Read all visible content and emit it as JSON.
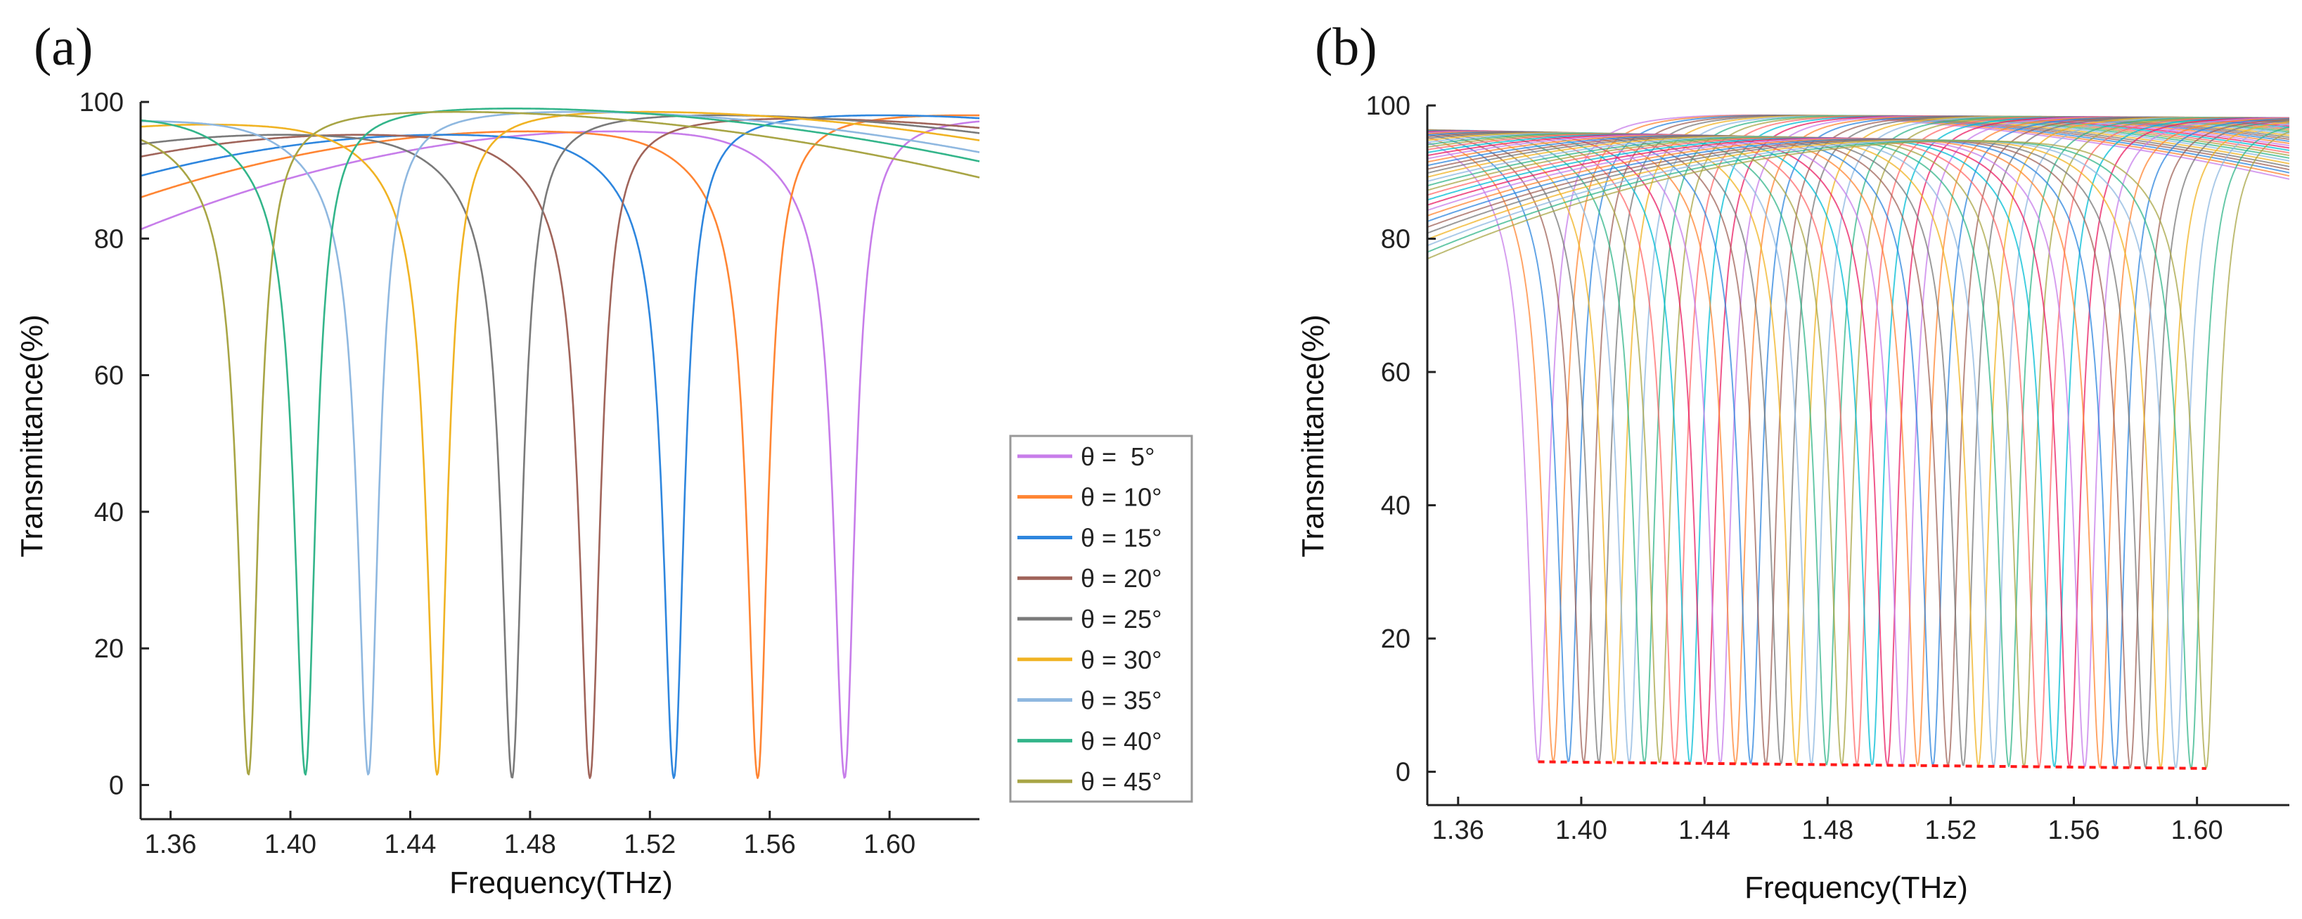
{
  "figure": {
    "panels": [
      {
        "label": "(a)",
        "chart_data": {
          "type": "line",
          "xlabel": "Frequency(THz)",
          "ylabel": "Transmittance(%)",
          "xlim": [
            1.35,
            1.63
          ],
          "ylim": [
            -5,
            100
          ],
          "xticks": [
            "1.36",
            "1.40",
            "1.44",
            "1.48",
            "1.52",
            "1.56",
            "1.60"
          ],
          "yticks": [
            "0",
            "20",
            "40",
            "60",
            "80",
            "100"
          ],
          "legend_position": "right",
          "series": [
            {
              "name": "θ =  5°",
              "color": "#c77dea",
              "dip_freq": 1.585,
              "dip_min": 1.0,
              "low_peak": 96,
              "high_peak": 98
            },
            {
              "name": "θ = 10°",
              "color": "#ff8533",
              "dip_freq": 1.556,
              "dip_min": 1.0,
              "low_peak": 96,
              "high_peak": 98.5
            },
            {
              "name": "θ = 15°",
              "color": "#2e86de",
              "dip_freq": 1.528,
              "dip_min": 1.0,
              "low_peak": 95.5,
              "high_peak": 98.5
            },
            {
              "name": "θ = 20°",
              "color": "#a0645a",
              "dip_freq": 1.5,
              "dip_min": 1.0,
              "low_peak": 95.5,
              "high_peak": 98
            },
            {
              "name": "θ = 25°",
              "color": "#7a7a7a",
              "dip_freq": 1.474,
              "dip_min": 1.0,
              "low_peak": 95.5,
              "high_peak": 98.5
            },
            {
              "name": "θ = 30°",
              "color": "#f0b323",
              "dip_freq": 1.449,
              "dip_min": 1.5,
              "low_peak": 97,
              "high_peak": 99
            },
            {
              "name": "θ = 35°",
              "color": "#8fb8e0",
              "dip_freq": 1.426,
              "dip_min": 1.5,
              "low_peak": 97.5,
              "high_peak": 99
            },
            {
              "name": "θ = 40°",
              "color": "#33b58a",
              "dip_freq": 1.405,
              "dip_min": 1.5,
              "low_peak": 98,
              "high_peak": 99.5
            },
            {
              "name": "θ = 45°",
              "color": "#a8a545",
              "dip_freq": 1.386,
              "dip_min": 1.5,
              "low_peak": 97,
              "high_peak": 99
            }
          ]
        }
      },
      {
        "label": "(b)",
        "chart_data": {
          "type": "line",
          "xlabel": "Frequency(THz)",
          "ylabel": "Transmittance(%)",
          "xlim": [
            1.35,
            1.63
          ],
          "ylim": [
            -5,
            100
          ],
          "xticks": [
            "1.36",
            "1.40",
            "1.44",
            "1.48",
            "1.52",
            "1.56",
            "1.60"
          ],
          "yticks": [
            "0",
            "20",
            "40",
            "60",
            "80",
            "100"
          ],
          "dip_range": [
            1.386,
            1.603
          ],
          "dip_count": 45,
          "dip_min_range": [
            1.5,
            0.5
          ],
          "min_trace_color": "#ff1a1a",
          "palette": [
            "#c77dea",
            "#ff8533",
            "#2e86de",
            "#a0645a",
            "#7a7a7a",
            "#f0b323",
            "#8fb8e0",
            "#33b58a",
            "#a8a545",
            "#ff6b6b",
            "#00bcd4",
            "#e91e63"
          ]
        }
      }
    ]
  }
}
